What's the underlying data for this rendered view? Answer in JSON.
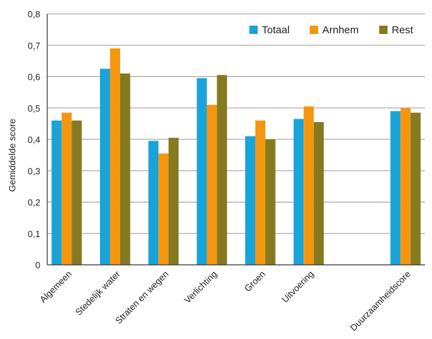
{
  "chart_data": {
    "type": "bar",
    "title": "",
    "xlabel": "",
    "ylabel": "Gemiddelde score",
    "ylim": [
      0,
      0.8
    ],
    "y_ticks": [
      "0",
      "0,1",
      "0,2",
      "0,3",
      "0,4",
      "0,5",
      "0,6",
      "0,7",
      "0,8"
    ],
    "grid": "horizontal",
    "legend_position": "top-right",
    "categories": [
      "Algemeen",
      "Stedelijk water",
      "Straten en wegen",
      "Verlichting",
      "Groen",
      "Uitvoering",
      "Duurzaamheidscore"
    ],
    "series": [
      {
        "name": "Totaal",
        "color": "#1aa3d9",
        "values": [
          0.46,
          0.625,
          0.395,
          0.595,
          0.41,
          0.465,
          0.49
        ]
      },
      {
        "name": "Arnhem",
        "color": "#f5960f",
        "values": [
          0.485,
          0.69,
          0.355,
          0.51,
          0.46,
          0.505,
          0.5
        ]
      },
      {
        "name": "Rest",
        "color": "#857a1f",
        "values": [
          0.46,
          0.61,
          0.405,
          0.605,
          0.4,
          0.455,
          0.485
        ]
      }
    ]
  }
}
